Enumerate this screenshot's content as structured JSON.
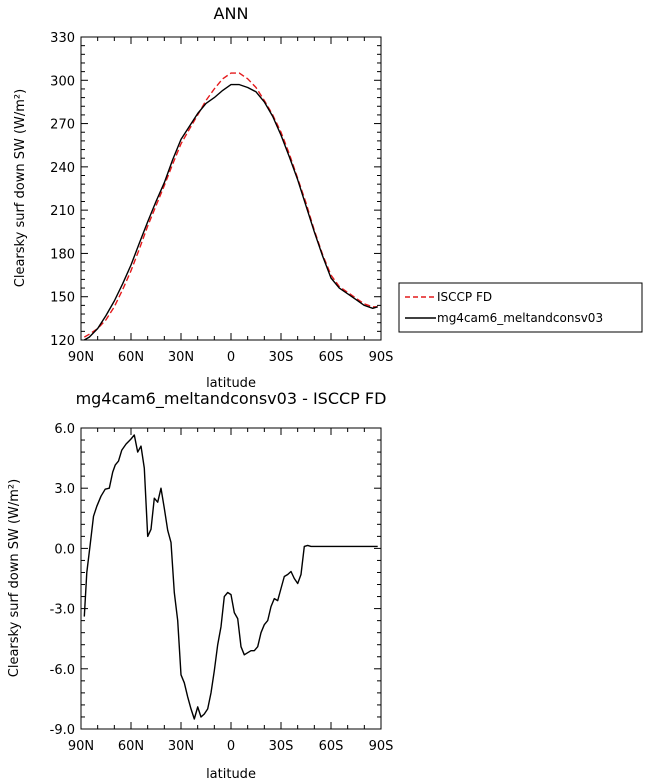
{
  "chart_data": [
    {
      "type": "line",
      "title": "ANN",
      "xlabel": "latitude",
      "ylabel": "Clearsky surf down SW (W/m²)",
      "xlim": [
        -90,
        90
      ],
      "ylim": [
        120,
        330
      ],
      "xticks": [
        -90,
        -60,
        -30,
        0,
        30,
        60,
        90
      ],
      "xtick_labels": [
        "90N",
        "60N",
        "30N",
        "0",
        "30S",
        "60S",
        "90S"
      ],
      "yticks": [
        120,
        150,
        180,
        210,
        240,
        270,
        300,
        330
      ],
      "ytick_labels": [
        "120",
        "150",
        "180",
        "210",
        "240",
        "270",
        "300",
        "330"
      ],
      "legend_position": "right",
      "series": [
        {
          "name": "ISCCP FD",
          "color": "#e41a1c",
          "dash": "dashed",
          "x": [
            -88,
            -85,
            -80,
            -75,
            -70,
            -65,
            -60,
            -55,
            -50,
            -45,
            -40,
            -35,
            -30,
            -25,
            -20,
            -15,
            -10,
            -5,
            0,
            5,
            10,
            15,
            20,
            25,
            30,
            35,
            40,
            45,
            50,
            55,
            60,
            65,
            70,
            75,
            80,
            85,
            88
          ],
          "y": [
            122,
            124,
            128,
            134,
            143,
            155,
            168,
            183,
            199,
            213,
            227,
            242,
            256,
            266,
            276,
            286,
            294,
            301,
            305,
            305,
            301,
            295,
            286,
            276,
            264,
            249,
            232,
            215,
            196,
            179,
            165,
            157,
            153,
            149,
            145,
            143,
            143
          ]
        },
        {
          "name": "mg4cam6_meltandconsv03",
          "color": "#000000",
          "dash": "solid",
          "x": [
            -88,
            -85,
            -80,
            -75,
            -70,
            -65,
            -60,
            -55,
            -50,
            -45,
            -40,
            -35,
            -30,
            -25,
            -20,
            -15,
            -10,
            -5,
            0,
            5,
            10,
            15,
            20,
            25,
            30,
            35,
            40,
            45,
            50,
            55,
            60,
            65,
            70,
            75,
            80,
            85,
            88
          ],
          "y": [
            120,
            122,
            128,
            137,
            147,
            159,
            172,
            187,
            202,
            216,
            229,
            245,
            259,
            268,
            277,
            284,
            288,
            293,
            297,
            297,
            295,
            292,
            285,
            275,
            262,
            247,
            231,
            213,
            195,
            178,
            163,
            156,
            152,
            148,
            144,
            142,
            143
          ]
        }
      ]
    },
    {
      "type": "line",
      "title": "mg4cam6_meltandconsv03 - ISCCP FD",
      "xlabel": "latitude",
      "ylabel": "Clearsky surf down SW (W/m²)",
      "xlim": [
        -90,
        90
      ],
      "ylim": [
        -9.0,
        6.0
      ],
      "xticks": [
        -90,
        -60,
        -30,
        0,
        30,
        60,
        90
      ],
      "xtick_labels": [
        "90N",
        "60N",
        "30N",
        "0",
        "30S",
        "60S",
        "90S"
      ],
      "yticks": [
        -9,
        -6,
        -3,
        0,
        3,
        6
      ],
      "ytick_labels": [
        "-9.0",
        "-6.0",
        "-3.0",
        "0.0",
        "3.0",
        "6.0"
      ],
      "series": [
        {
          "color": "#000000",
          "dash": "solid",
          "x": [
            -88,
            -86.5,
            -84.5,
            -82.5,
            -80.5,
            -78,
            -75.5,
            -73,
            -71,
            -69.5,
            -67.5,
            -65.5,
            -63,
            -60,
            -58,
            -56,
            -54,
            -52,
            -50,
            -48,
            -46,
            -44,
            -42,
            -40,
            -38,
            -36,
            -34,
            -32,
            -30,
            -28,
            -26,
            -24,
            -22,
            -20,
            -18,
            -16,
            -14,
            -12,
            -10,
            -8,
            -6,
            -4,
            -2,
            0,
            2,
            4,
            6,
            8,
            10,
            12,
            14,
            16,
            18,
            20,
            22,
            24,
            26,
            28,
            30,
            32,
            34,
            36,
            38,
            40,
            42,
            44,
            46,
            48,
            50,
            52,
            54,
            56,
            58,
            60,
            62,
            64,
            66,
            68,
            70,
            72,
            74,
            76,
            78,
            80,
            82,
            84,
            86,
            88
          ],
          "y": [
            -3.4,
            -1.2,
            0.2,
            1.6,
            2.1,
            2.6,
            2.95,
            3.0,
            3.8,
            4.15,
            4.35,
            4.9,
            5.2,
            5.45,
            5.65,
            4.8,
            5.1,
            4.0,
            0.6,
            0.95,
            2.5,
            2.3,
            3.0,
            2.0,
            0.9,
            0.3,
            -2.2,
            -3.6,
            -6.3,
            -6.7,
            -7.4,
            -8.0,
            -8.5,
            -7.9,
            -8.4,
            -8.25,
            -8.0,
            -7.2,
            -6.1,
            -4.8,
            -3.9,
            -2.4,
            -2.2,
            -2.3,
            -3.2,
            -3.5,
            -4.9,
            -5.3,
            -5.2,
            -5.1,
            -5.1,
            -4.9,
            -4.2,
            -3.8,
            -3.6,
            -2.9,
            -2.5,
            -2.6,
            -2.0,
            -1.4,
            -1.3,
            -1.15,
            -1.5,
            -1.75,
            -1.3,
            0.1,
            0.15,
            0.1,
            0.1,
            0.1,
            0.1,
            0.1,
            0.1,
            0.1,
            0.1,
            0.1,
            0.1,
            0.1,
            0.1,
            0.1,
            0.1,
            0.1,
            0.1,
            0.1,
            0.1,
            0.1,
            0.1,
            0.1
          ]
        }
      ]
    }
  ]
}
